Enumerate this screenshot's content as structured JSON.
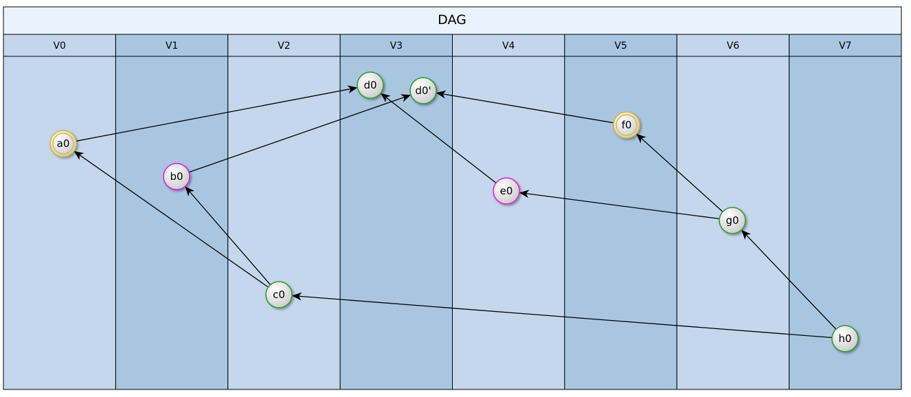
{
  "title": "DAG",
  "lanes": [
    "V0",
    "V1",
    "V2",
    "V3",
    "V4",
    "V5",
    "V6",
    "V7"
  ],
  "colors": {
    "title_bg": "#eaf2fd",
    "header_bg": "#c3d6ec",
    "lane_light": "#c4d7ec",
    "lane_dark": "#a8c6e0",
    "stroke": "#000000",
    "node_green": "#2e9e2e",
    "node_magenta": "#e020e0",
    "node_gold": "#d8b830",
    "node_fill_light": "#f4f4f4",
    "node_fill_dark": "#cfcfcf"
  },
  "nodes": [
    {
      "id": "a0",
      "label": "a0",
      "lane": "V0",
      "style": "gold-double"
    },
    {
      "id": "b0",
      "label": "b0",
      "lane": "V1",
      "style": "magenta"
    },
    {
      "id": "c0",
      "label": "c0",
      "lane": "V2",
      "style": "green"
    },
    {
      "id": "d0",
      "label": "d0",
      "lane": "V3",
      "style": "green"
    },
    {
      "id": "d0p",
      "label": "d0'",
      "lane": "V3",
      "style": "green"
    },
    {
      "id": "e0",
      "label": "e0",
      "lane": "V4",
      "style": "magenta"
    },
    {
      "id": "f0",
      "label": "f0",
      "lane": "V5",
      "style": "gold-double"
    },
    {
      "id": "g0",
      "label": "g0",
      "lane": "V6",
      "style": "green"
    },
    {
      "id": "h0",
      "label": "h0",
      "lane": "V7",
      "style": "green"
    }
  ],
  "edges": [
    {
      "from": "a0",
      "to": "d0"
    },
    {
      "from": "b0",
      "to": "d0p"
    },
    {
      "from": "c0",
      "to": "a0"
    },
    {
      "from": "c0",
      "to": "b0"
    },
    {
      "from": "e0",
      "to": "d0"
    },
    {
      "from": "f0",
      "to": "d0p"
    },
    {
      "from": "g0",
      "to": "f0"
    },
    {
      "from": "g0",
      "to": "e0"
    },
    {
      "from": "h0",
      "to": "g0"
    },
    {
      "from": "h0",
      "to": "c0"
    }
  ]
}
